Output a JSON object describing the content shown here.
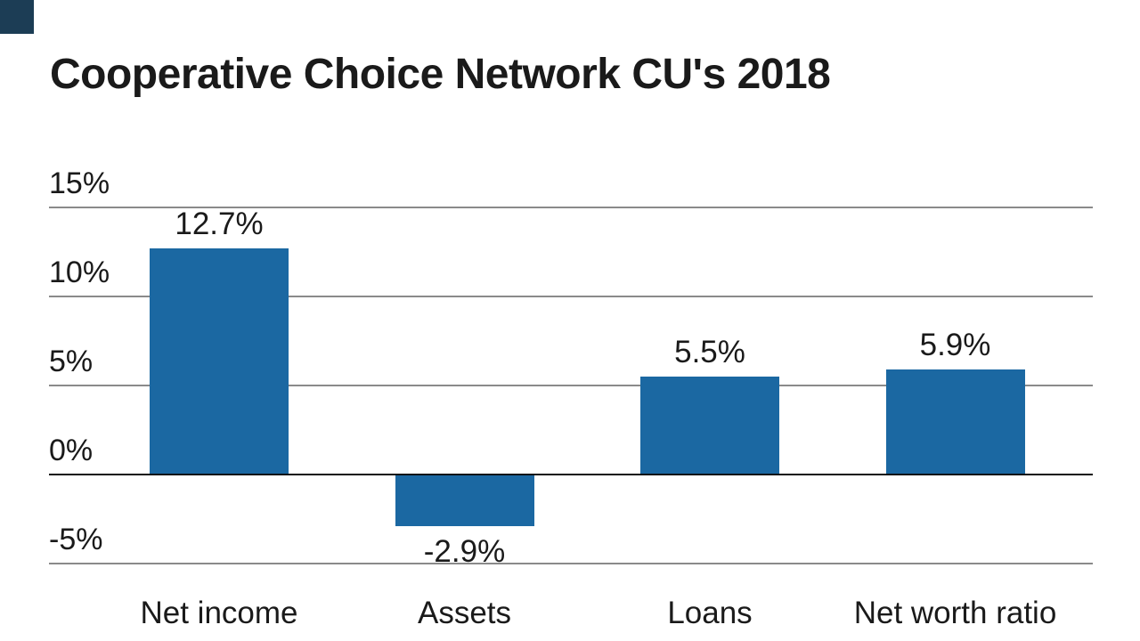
{
  "brand": {
    "mark_color": "#1C3D55"
  },
  "title": "Cooperative Choice Network CU's 2018",
  "chart_data": {
    "type": "bar",
    "title": "Cooperative Choice Network CU's 2018",
    "categories": [
      "Net income",
      "Assets",
      "Loans",
      "Net worth ratio"
    ],
    "values": [
      12.7,
      -2.9,
      5.5,
      5.9
    ],
    "value_labels": [
      "12.7%",
      "-2.9%",
      "5.5%",
      "5.9%"
    ],
    "xlabel": "",
    "ylabel": "",
    "ylim": [
      -5,
      15
    ],
    "y_ticks": [
      {
        "value": 15,
        "label": "15%"
      },
      {
        "value": 10,
        "label": "10%"
      },
      {
        "value": 5,
        "label": "5%"
      },
      {
        "value": 0,
        "label": "0%"
      },
      {
        "value": -5,
        "label": "-5%"
      }
    ],
    "grid": true,
    "legend": "none",
    "bar_color": "#1B68A2",
    "grid_color": "#8A8A8A",
    "zero_line_color": "#111111",
    "text_color": "#1A1A1A",
    "background_color": "#FFFFFF"
  }
}
